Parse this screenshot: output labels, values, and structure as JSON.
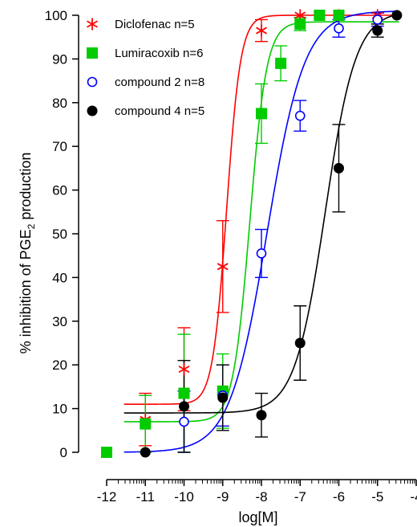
{
  "chart_data": {
    "type": "scatter",
    "title": "",
    "xlabel": "log[M]",
    "ylabel_parts": [
      "% inhibition of PGE",
      "2",
      " production"
    ],
    "xlim": [
      -12,
      -4
    ],
    "ylim": [
      0,
      100
    ],
    "x_ticks": [
      -12,
      -11,
      -10,
      -9,
      -8,
      -7,
      -6,
      -5,
      -4
    ],
    "x_tick_labels": [
      "-12",
      "-11",
      "-10",
      "-9",
      "-8",
      "-7",
      "-6",
      "-5",
      "-4"
    ],
    "y_ticks": [
      0,
      10,
      20,
      30,
      40,
      50,
      60,
      70,
      80,
      90,
      100
    ],
    "y_tick_labels": [
      "0",
      "10",
      "20",
      "30",
      "40",
      "50",
      "60",
      "70",
      "80",
      "90",
      "100"
    ],
    "grid": false,
    "legend_position": "top-left",
    "series": [
      {
        "name": "Diclofenac n=5",
        "marker": "asterisk",
        "color": "#ff0000",
        "points": [
          {
            "x": -11,
            "y": 7.5,
            "err": 6
          },
          {
            "x": -10,
            "y": 19,
            "err": 9.5
          },
          {
            "x": -9,
            "y": 42.5,
            "err": 10.5
          },
          {
            "x": -8,
            "y": 96.5,
            "err": 2.5
          },
          {
            "x": -7,
            "y": 100,
            "err": 0
          },
          {
            "x": -6,
            "y": 100,
            "err": 0
          },
          {
            "x": -5,
            "y": 100,
            "err": 0
          }
        ],
        "fit": {
          "bottom": 11,
          "top": 100,
          "logec50": -8.9,
          "hill": 2.4
        }
      },
      {
        "name": "Lumiracoxib n=6",
        "marker": "filled-square",
        "color": "#00cc00",
        "points": [
          {
            "x": -12,
            "y": 0,
            "err": 0
          },
          {
            "x": -11,
            "y": 6.5,
            "err": 6.5
          },
          {
            "x": -10,
            "y": 13.5,
            "err": 13.5
          },
          {
            "x": -9,
            "y": 14,
            "err": 8.5
          },
          {
            "x": -8,
            "y": 77.5,
            "err": 6.8
          },
          {
            "x": -7.5,
            "y": 89,
            "err": 4
          },
          {
            "x": -7,
            "y": 98,
            "err": 1.5
          },
          {
            "x": -6.5,
            "y": 100,
            "err": 0
          },
          {
            "x": -6,
            "y": 100,
            "err": 0
          }
        ],
        "fit": {
          "bottom": 7,
          "top": 98.5,
          "logec50": -8.3,
          "hill": 2.0
        }
      },
      {
        "name": "compound 2 n=8",
        "marker": "open-circle",
        "color": "#0000ff",
        "points": [
          {
            "x": -10,
            "y": 7,
            "err": 7
          },
          {
            "x": -9,
            "y": 13,
            "err": 7
          },
          {
            "x": -8,
            "y": 45.5,
            "err": 5.5
          },
          {
            "x": -7,
            "y": 77,
            "err": 3.5
          },
          {
            "x": -6,
            "y": 97,
            "err": 2
          },
          {
            "x": -5,
            "y": 99,
            "err": 1.5
          }
        ],
        "fit": {
          "bottom": 0,
          "top": 101,
          "logec50": -7.85,
          "hill": 0.9
        }
      },
      {
        "name": "compound 4 n=5",
        "marker": "filled-circle",
        "color": "#000000",
        "points": [
          {
            "x": -11,
            "y": 0,
            "err": 0
          },
          {
            "x": -10,
            "y": 10.5,
            "err": 10.5
          },
          {
            "x": -9,
            "y": 12.5,
            "err": 7.5
          },
          {
            "x": -8,
            "y": 8.5,
            "err": 5
          },
          {
            "x": -7,
            "y": 25,
            "err": 8.5
          },
          {
            "x": -6,
            "y": 65,
            "err": 10
          },
          {
            "x": -5,
            "y": 96.5,
            "err": 1.5
          },
          {
            "x": -4.5,
            "y": 100,
            "err": 0
          }
        ],
        "fit": {
          "bottom": 9,
          "top": 101,
          "logec50": -6.35,
          "hill": 1.1
        }
      }
    ]
  }
}
